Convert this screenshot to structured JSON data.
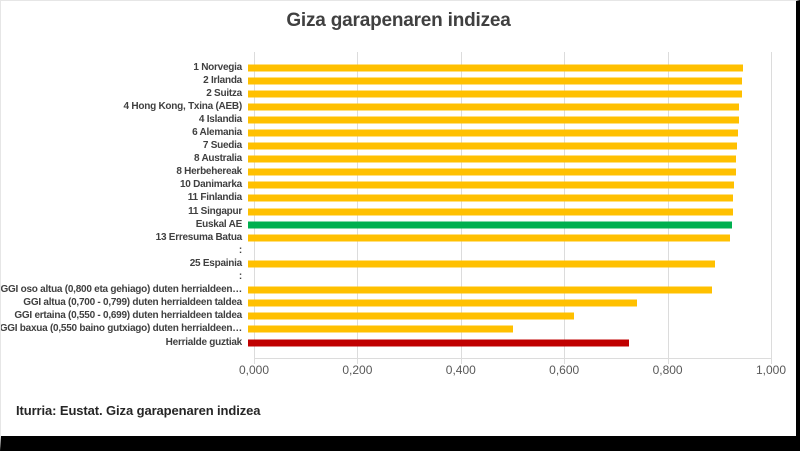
{
  "header": {
    "title": "Giza garapenaren indizea"
  },
  "footer": {
    "source": "Iturria: Eustat. Giza garapenaren indizea"
  },
  "colors": {
    "bar_default": "#FFC000",
    "bar_highlight": "#00B050",
    "bar_total": "#C00000",
    "grid": "#DCDCDC",
    "title_text": "#404040",
    "label_text": "#404040",
    "axis_text": "#595959",
    "frame_edge": "#000000"
  },
  "chart_data": {
    "type": "bar",
    "orientation": "horizontal",
    "title": "Giza garapenaren indizea",
    "xlabel": "",
    "ylabel": "",
    "xlim": [
      0.0,
      1.0
    ],
    "grid": true,
    "legend": false,
    "x_ticks": [
      {
        "label": "0,000",
        "value": 0.0
      },
      {
        "label": "0,200",
        "value": 0.2
      },
      {
        "label": "0,400",
        "value": 0.4
      },
      {
        "label": "0,600",
        "value": 0.6
      },
      {
        "label": "0,800",
        "value": 0.8
      },
      {
        "label": "1,000",
        "value": 1.0
      }
    ],
    "rows": [
      {
        "label": "1 Norvegia",
        "value": 0.957,
        "color": "#FFC000"
      },
      {
        "label": "2 Irlanda",
        "value": 0.955,
        "color": "#FFC000"
      },
      {
        "label": "2 Suitza",
        "value": 0.955,
        "color": "#FFC000"
      },
      {
        "label": "4 Hong Kong, Txina (AEB)",
        "value": 0.949,
        "color": "#FFC000"
      },
      {
        "label": "4 Islandia",
        "value": 0.949,
        "color": "#FFC000"
      },
      {
        "label": "6 Alemania",
        "value": 0.947,
        "color": "#FFC000"
      },
      {
        "label": "7 Suedia",
        "value": 0.945,
        "color": "#FFC000"
      },
      {
        "label": "8 Australia",
        "value": 0.944,
        "color": "#FFC000"
      },
      {
        "label": "8 Herbehereak",
        "value": 0.944,
        "color": "#FFC000"
      },
      {
        "label": "10 Danimarka",
        "value": 0.94,
        "color": "#FFC000"
      },
      {
        "label": "11 Finlandia",
        "value": 0.938,
        "color": "#FFC000"
      },
      {
        "label": "11 Singapur",
        "value": 0.938,
        "color": "#FFC000"
      },
      {
        "label": "Euskal AE",
        "value": 0.937,
        "color": "#00B050"
      },
      {
        "label": "13 Erresuma Batua",
        "value": 0.932,
        "color": "#FFC000"
      },
      {
        "label": ":",
        "value": null,
        "color": null
      },
      {
        "label": "25 Espainia",
        "value": 0.904,
        "color": "#FFC000"
      },
      {
        "label": ":",
        "value": null,
        "color": null
      },
      {
        "label": "GGI oso altua (0,800 eta gehiago) duten herrialdeen…",
        "value": 0.898,
        "color": "#FFC000"
      },
      {
        "label": "GGI altua (0,700 - 0,799) duten herrialdeen taldea",
        "value": 0.753,
        "color": "#FFC000"
      },
      {
        "label": "GGI ertaina (0,550 - 0,699) duten herrialdeen taldea",
        "value": 0.631,
        "color": "#FFC000"
      },
      {
        "label": "GGI baxua (0,550 baino gutxiago) duten herrialdeen…",
        "value": 0.513,
        "color": "#FFC000"
      },
      {
        "label": "Herrialde guztiak",
        "value": 0.737,
        "color": "#C00000"
      }
    ]
  }
}
